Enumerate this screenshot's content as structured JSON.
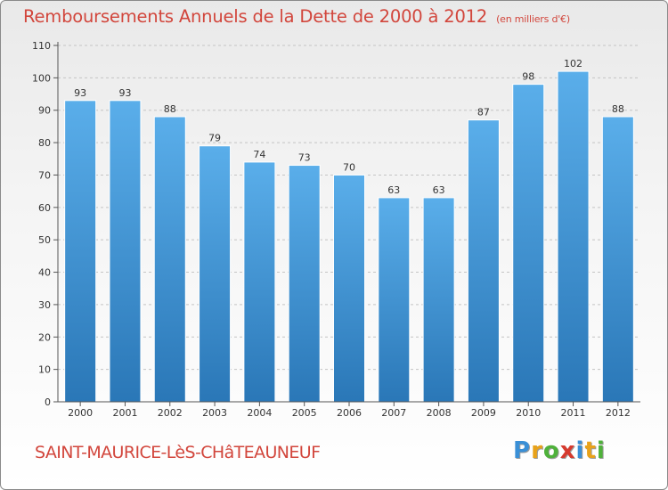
{
  "chart_data": {
    "type": "bar",
    "title": "Remboursements Annuels de la Dette de 2000 à 2012",
    "subtitle": "(en milliers d'€)",
    "categories": [
      "2000",
      "2001",
      "2002",
      "2003",
      "2004",
      "2005",
      "2006",
      "2007",
      "2008",
      "2009",
      "2010",
      "2011",
      "2012"
    ],
    "values": [
      93,
      93,
      88,
      79,
      74,
      73,
      70,
      63,
      63,
      87,
      98,
      102,
      88
    ],
    "yticks": [
      "0",
      "10",
      "20",
      "30",
      "40",
      "50",
      "60",
      "70",
      "80",
      "90",
      "100",
      "110"
    ],
    "ylim": [
      0,
      110
    ],
    "grid": true,
    "xlabel": "",
    "ylabel": ""
  },
  "footer": {
    "commune": "SAINT-MAURICE-LèS-CHâTEAUNEUF"
  },
  "logo": {
    "letters": [
      "P",
      "r",
      "o",
      "x",
      "i",
      "t",
      "i"
    ],
    "colors": [
      "#3a8fd6",
      "#e8a21a",
      "#4fb13b",
      "#d63a2e",
      "#3a8fd6",
      "#e8a21a",
      "#4fb13b"
    ]
  },
  "colors": {
    "title": "#d2463c",
    "bar_light": "#5aaeea",
    "bar_dark": "#2a77b7",
    "grid": "#c4c4c4",
    "axis": "#555555"
  }
}
